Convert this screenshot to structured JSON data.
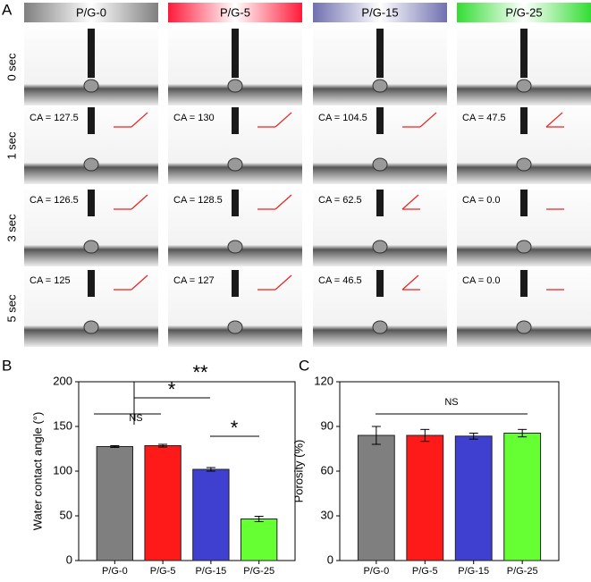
{
  "panel_a": {
    "label": "A",
    "headers": [
      "P/G-0",
      "P/G-5",
      "P/G-15",
      "P/G-25"
    ],
    "times": [
      "0 sec",
      "1 sec",
      "3 sec",
      "5 sec"
    ],
    "ca_labels": [
      [
        "CA = 127.5",
        "CA = 130",
        "CA = 104.5",
        "CA = 47.5"
      ],
      [
        "CA = 126.5",
        "CA = 128.5",
        "CA = 62.5",
        "CA = 0.0"
      ],
      [
        "CA = 125",
        "CA = 127",
        "CA = 46.5",
        "CA = 0.0"
      ]
    ]
  },
  "chart_data": [
    {
      "type": "bar",
      "panel": "B",
      "y_label": "Water contact angle (°)",
      "categories": [
        "P/G-0",
        "P/G-5",
        "P/G-15",
        "P/G-25"
      ],
      "values": [
        127.5,
        128.5,
        102,
        46.5
      ],
      "errors": [
        1,
        1.5,
        2,
        3
      ],
      "colors": [
        "#7f7f7f",
        "#ff1a1a",
        "#3f3fd0",
        "#66ff33"
      ],
      "ylim": [
        0,
        200
      ],
      "yticks": [
        0,
        50,
        100,
        150,
        200
      ],
      "annotations": [
        "NS",
        "*",
        "**",
        "*"
      ]
    },
    {
      "type": "bar",
      "panel": "C",
      "y_label": "Porosity (%)",
      "categories": [
        "P/G-0",
        "P/G-5",
        "P/G-15",
        "P/G-25"
      ],
      "values": [
        84,
        84,
        83.5,
        85.5
      ],
      "errors": [
        6,
        4,
        2,
        2.5
      ],
      "colors": [
        "#7f7f7f",
        "#ff1a1a",
        "#3f3fd0",
        "#66ff33"
      ],
      "ylim": [
        0,
        120
      ],
      "yticks": [
        0,
        30,
        60,
        90,
        120
      ],
      "annotations": [
        "NS"
      ]
    }
  ]
}
